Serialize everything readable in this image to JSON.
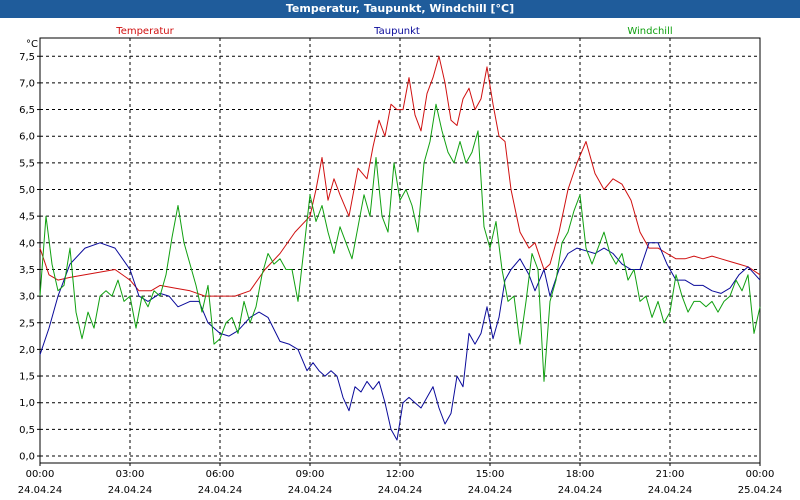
{
  "window": {
    "title": "Temperatur, Taupunkt, Windchill [°C]"
  },
  "chart_data": {
    "type": "line",
    "title": "Temperatur, Taupunkt, Windchill [°C]",
    "ylabel": "°C",
    "unit": "°C",
    "xlabel": "",
    "ylim": [
      -0.1,
      7.7
    ],
    "xlim": [
      0,
      24
    ],
    "grid": true,
    "legend_position": "top",
    "y_ticks": [
      "0.0",
      "0.5",
      "1.0",
      "1.5",
      "2.0",
      "2.5",
      "3.0",
      "3.5",
      "4.0",
      "4.5",
      "5.0",
      "5.5",
      "6.0",
      "6.5",
      "7.0",
      "7.5"
    ],
    "x_ticks": [
      {
        "time": "00:00",
        "date": "24.04.24",
        "hour": 0
      },
      {
        "time": "03:00",
        "date": "24.04.24",
        "hour": 3
      },
      {
        "time": "06:00",
        "date": "24.04.24",
        "hour": 6
      },
      {
        "time": "09:00",
        "date": "24.04.24",
        "hour": 9
      },
      {
        "time": "12:00",
        "date": "24.04.24",
        "hour": 12
      },
      {
        "time": "15:00",
        "date": "24.04.24",
        "hour": 15
      },
      {
        "time": "18:00",
        "date": "24.04.24",
        "hour": 18
      },
      {
        "time": "21:00",
        "date": "24.04.24",
        "hour": 21
      },
      {
        "time": "00:00",
        "date": "25.04.24",
        "hour": 24
      }
    ],
    "series": [
      {
        "name": "Temperatur",
        "color": "#d01010",
        "points": [
          [
            0,
            3.9
          ],
          [
            0.3,
            3.4
          ],
          [
            0.6,
            3.3
          ],
          [
            1,
            3.35
          ],
          [
            1.5,
            3.4
          ],
          [
            2,
            3.45
          ],
          [
            2.5,
            3.5
          ],
          [
            3,
            3.3
          ],
          [
            3.3,
            3.1
          ],
          [
            3.7,
            3.1
          ],
          [
            4,
            3.2
          ],
          [
            4.5,
            3.15
          ],
          [
            5,
            3.1
          ],
          [
            5.5,
            3.0
          ],
          [
            6,
            3.0
          ],
          [
            6.5,
            3.0
          ],
          [
            7,
            3.1
          ],
          [
            7.5,
            3.5
          ],
          [
            8,
            3.8
          ],
          [
            8.5,
            4.2
          ],
          [
            9,
            4.5
          ],
          [
            9.2,
            5.0
          ],
          [
            9.4,
            5.6
          ],
          [
            9.6,
            4.8
          ],
          [
            9.8,
            5.2
          ],
          [
            10,
            4.9
          ],
          [
            10.3,
            4.5
          ],
          [
            10.6,
            5.4
          ],
          [
            10.9,
            5.2
          ],
          [
            11.1,
            5.8
          ],
          [
            11.3,
            6.3
          ],
          [
            11.5,
            6.0
          ],
          [
            11.7,
            6.6
          ],
          [
            11.9,
            6.5
          ],
          [
            12.1,
            6.5
          ],
          [
            12.3,
            7.1
          ],
          [
            12.5,
            6.4
          ],
          [
            12.7,
            6.1
          ],
          [
            12.9,
            6.8
          ],
          [
            13.1,
            7.1
          ],
          [
            13.3,
            7.5
          ],
          [
            13.5,
            7.0
          ],
          [
            13.7,
            6.3
          ],
          [
            13.9,
            6.2
          ],
          [
            14.1,
            6.7
          ],
          [
            14.3,
            6.9
          ],
          [
            14.5,
            6.5
          ],
          [
            14.7,
            6.7
          ],
          [
            14.9,
            7.3
          ],
          [
            15.1,
            6.6
          ],
          [
            15.3,
            6.0
          ],
          [
            15.5,
            5.9
          ],
          [
            15.7,
            5.0
          ],
          [
            16,
            4.2
          ],
          [
            16.3,
            3.9
          ],
          [
            16.5,
            4.0
          ],
          [
            16.8,
            3.5
          ],
          [
            17,
            3.6
          ],
          [
            17.3,
            4.2
          ],
          [
            17.6,
            5.0
          ],
          [
            17.9,
            5.5
          ],
          [
            18.2,
            5.9
          ],
          [
            18.5,
            5.3
          ],
          [
            18.8,
            5.0
          ],
          [
            19.1,
            5.2
          ],
          [
            19.4,
            5.1
          ],
          [
            19.7,
            4.8
          ],
          [
            20,
            4.2
          ],
          [
            20.3,
            3.9
          ],
          [
            20.6,
            3.9
          ],
          [
            20.9,
            3.8
          ],
          [
            21.2,
            3.7
          ],
          [
            21.5,
            3.7
          ],
          [
            21.8,
            3.75
          ],
          [
            22.1,
            3.7
          ],
          [
            22.4,
            3.75
          ],
          [
            22.7,
            3.7
          ],
          [
            23,
            3.65
          ],
          [
            23.3,
            3.6
          ],
          [
            23.6,
            3.55
          ],
          [
            24,
            3.4
          ]
        ]
      },
      {
        "name": "Taupunkt",
        "color": "#0a0a9a",
        "points": [
          [
            0,
            1.9
          ],
          [
            0.3,
            2.4
          ],
          [
            0.6,
            3.0
          ],
          [
            1,
            3.6
          ],
          [
            1.5,
            3.9
          ],
          [
            2,
            4.0
          ],
          [
            2.5,
            3.9
          ],
          [
            3,
            3.5
          ],
          [
            3.3,
            3.0
          ],
          [
            3.6,
            2.9
          ],
          [
            4,
            3.05
          ],
          [
            4.3,
            3.0
          ],
          [
            4.6,
            2.8
          ],
          [
            5,
            2.9
          ],
          [
            5.3,
            2.9
          ],
          [
            5.6,
            2.5
          ],
          [
            6,
            2.3
          ],
          [
            6.3,
            2.25
          ],
          [
            6.6,
            2.35
          ],
          [
            7,
            2.6
          ],
          [
            7.3,
            2.7
          ],
          [
            7.6,
            2.6
          ],
          [
            8,
            2.15
          ],
          [
            8.3,
            2.1
          ],
          [
            8.6,
            2.0
          ],
          [
            8.9,
            1.6
          ],
          [
            9.1,
            1.75
          ],
          [
            9.3,
            1.6
          ],
          [
            9.5,
            1.5
          ],
          [
            9.7,
            1.6
          ],
          [
            9.9,
            1.5
          ],
          [
            10.1,
            1.1
          ],
          [
            10.3,
            0.85
          ],
          [
            10.5,
            1.3
          ],
          [
            10.7,
            1.2
          ],
          [
            10.9,
            1.4
          ],
          [
            11.1,
            1.25
          ],
          [
            11.3,
            1.4
          ],
          [
            11.5,
            1.0
          ],
          [
            11.7,
            0.5
          ],
          [
            11.9,
            0.3
          ],
          [
            12.1,
            1.0
          ],
          [
            12.3,
            1.1
          ],
          [
            12.5,
            1.0
          ],
          [
            12.7,
            0.9
          ],
          [
            12.9,
            1.1
          ],
          [
            13.1,
            1.3
          ],
          [
            13.3,
            0.9
          ],
          [
            13.5,
            0.6
          ],
          [
            13.7,
            0.8
          ],
          [
            13.9,
            1.5
          ],
          [
            14.1,
            1.3
          ],
          [
            14.3,
            2.3
          ],
          [
            14.5,
            2.1
          ],
          [
            14.7,
            2.3
          ],
          [
            14.9,
            2.8
          ],
          [
            15.1,
            2.2
          ],
          [
            15.3,
            2.6
          ],
          [
            15.5,
            3.3
          ],
          [
            15.7,
            3.5
          ],
          [
            16,
            3.7
          ],
          [
            16.3,
            3.4
          ],
          [
            16.5,
            3.1
          ],
          [
            16.8,
            3.5
          ],
          [
            17,
            3.0
          ],
          [
            17.3,
            3.5
          ],
          [
            17.6,
            3.8
          ],
          [
            17.9,
            3.9
          ],
          [
            18.2,
            3.85
          ],
          [
            18.5,
            3.8
          ],
          [
            18.8,
            3.9
          ],
          [
            19.1,
            3.8
          ],
          [
            19.4,
            3.6
          ],
          [
            19.7,
            3.5
          ],
          [
            20,
            3.5
          ],
          [
            20.3,
            4.0
          ],
          [
            20.6,
            4.0
          ],
          [
            20.9,
            3.6
          ],
          [
            21.2,
            3.3
          ],
          [
            21.5,
            3.3
          ],
          [
            21.8,
            3.2
          ],
          [
            22.1,
            3.2
          ],
          [
            22.4,
            3.1
          ],
          [
            22.7,
            3.05
          ],
          [
            23,
            3.15
          ],
          [
            23.3,
            3.4
          ],
          [
            23.6,
            3.55
          ],
          [
            24,
            3.3
          ]
        ]
      },
      {
        "name": "Windchill",
        "color": "#10a010",
        "points": [
          [
            0,
            3.0
          ],
          [
            0.2,
            4.5
          ],
          [
            0.4,
            3.6
          ],
          [
            0.6,
            3.1
          ],
          [
            0.8,
            3.2
          ],
          [
            1,
            3.9
          ],
          [
            1.2,
            2.7
          ],
          [
            1.4,
            2.2
          ],
          [
            1.6,
            2.7
          ],
          [
            1.8,
            2.4
          ],
          [
            2,
            3.0
          ],
          [
            2.2,
            3.1
          ],
          [
            2.4,
            3.0
          ],
          [
            2.6,
            3.3
          ],
          [
            2.8,
            2.9
          ],
          [
            3,
            3.0
          ],
          [
            3.2,
            2.4
          ],
          [
            3.4,
            3.0
          ],
          [
            3.6,
            2.8
          ],
          [
            3.8,
            3.1
          ],
          [
            4,
            3.0
          ],
          [
            4.2,
            3.4
          ],
          [
            4.4,
            4.1
          ],
          [
            4.6,
            4.7
          ],
          [
            4.8,
            4.0
          ],
          [
            5,
            3.6
          ],
          [
            5.2,
            3.2
          ],
          [
            5.4,
            2.7
          ],
          [
            5.6,
            3.2
          ],
          [
            5.8,
            2.1
          ],
          [
            6,
            2.2
          ],
          [
            6.2,
            2.5
          ],
          [
            6.4,
            2.6
          ],
          [
            6.6,
            2.3
          ],
          [
            6.8,
            2.9
          ],
          [
            7,
            2.5
          ],
          [
            7.2,
            2.8
          ],
          [
            7.4,
            3.4
          ],
          [
            7.6,
            3.8
          ],
          [
            7.8,
            3.6
          ],
          [
            8,
            3.7
          ],
          [
            8.2,
            3.5
          ],
          [
            8.4,
            3.5
          ],
          [
            8.6,
            2.9
          ],
          [
            8.8,
            3.9
          ],
          [
            9,
            4.9
          ],
          [
            9.2,
            4.4
          ],
          [
            9.4,
            4.7
          ],
          [
            9.6,
            4.2
          ],
          [
            9.8,
            3.8
          ],
          [
            10,
            4.3
          ],
          [
            10.2,
            4.0
          ],
          [
            10.4,
            3.7
          ],
          [
            10.6,
            4.3
          ],
          [
            10.8,
            4.9
          ],
          [
            11,
            4.5
          ],
          [
            11.2,
            5.6
          ],
          [
            11.4,
            4.5
          ],
          [
            11.6,
            4.2
          ],
          [
            11.8,
            5.5
          ],
          [
            12,
            4.8
          ],
          [
            12.2,
            5.0
          ],
          [
            12.4,
            4.7
          ],
          [
            12.6,
            4.2
          ],
          [
            12.8,
            5.5
          ],
          [
            13,
            5.9
          ],
          [
            13.2,
            6.6
          ],
          [
            13.4,
            6.1
          ],
          [
            13.6,
            5.7
          ],
          [
            13.8,
            5.5
          ],
          [
            14,
            5.9
          ],
          [
            14.2,
            5.5
          ],
          [
            14.4,
            5.7
          ],
          [
            14.6,
            6.1
          ],
          [
            14.8,
            4.3
          ],
          [
            15,
            3.9
          ],
          [
            15.2,
            4.4
          ],
          [
            15.4,
            3.5
          ],
          [
            15.6,
            2.9
          ],
          [
            15.8,
            3.0
          ],
          [
            16,
            2.1
          ],
          [
            16.2,
            2.9
          ],
          [
            16.4,
            3.8
          ],
          [
            16.6,
            3.5
          ],
          [
            16.8,
            1.4
          ],
          [
            17,
            2.9
          ],
          [
            17.2,
            3.3
          ],
          [
            17.4,
            4.0
          ],
          [
            17.6,
            4.2
          ],
          [
            17.8,
            4.6
          ],
          [
            18,
            4.9
          ],
          [
            18.2,
            3.9
          ],
          [
            18.4,
            3.6
          ],
          [
            18.6,
            3.9
          ],
          [
            18.8,
            4.2
          ],
          [
            19,
            3.8
          ],
          [
            19.2,
            3.6
          ],
          [
            19.4,
            3.8
          ],
          [
            19.6,
            3.3
          ],
          [
            19.8,
            3.5
          ],
          [
            20,
            2.9
          ],
          [
            20.2,
            3.0
          ],
          [
            20.4,
            2.6
          ],
          [
            20.6,
            2.9
          ],
          [
            20.8,
            2.5
          ],
          [
            21,
            2.7
          ],
          [
            21.2,
            3.4
          ],
          [
            21.4,
            3.0
          ],
          [
            21.6,
            2.7
          ],
          [
            21.8,
            2.9
          ],
          [
            22,
            2.9
          ],
          [
            22.2,
            2.8
          ],
          [
            22.4,
            2.9
          ],
          [
            22.6,
            2.7
          ],
          [
            22.8,
            2.9
          ],
          [
            23,
            3.0
          ],
          [
            23.2,
            3.3
          ],
          [
            23.4,
            3.1
          ],
          [
            23.6,
            3.4
          ],
          [
            23.8,
            2.3
          ],
          [
            24,
            2.8
          ]
        ]
      }
    ]
  }
}
